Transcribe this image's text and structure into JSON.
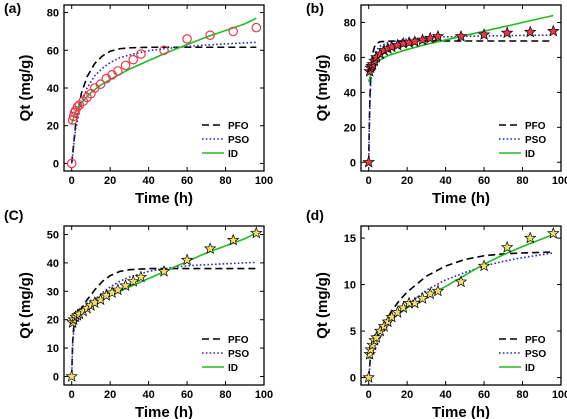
{
  "chart_data": [
    {
      "type": "scatter",
      "panel_label": "(a)",
      "xlabel": "Time (h)",
      "ylabel": "Qt (mg/g)",
      "xlim": [
        -4,
        100
      ],
      "ylim": [
        -4,
        84
      ],
      "xticks": [
        0,
        20,
        40,
        60,
        80,
        100
      ],
      "yticks": [
        0,
        20,
        40,
        60,
        80
      ],
      "grid": false,
      "legend_position": "bottom-right",
      "marker": "circle",
      "marker_fill": "none",
      "marker_stroke": "#e8384a",
      "points": {
        "x": [
          0,
          0.5,
          1,
          1.5,
          2,
          3,
          4,
          6,
          8,
          10,
          12,
          15,
          18,
          21,
          24,
          28,
          32,
          36,
          48,
          60,
          72,
          84,
          96
        ],
        "y": [
          0,
          23,
          25,
          27,
          28,
          30,
          31,
          33,
          35,
          37,
          40,
          42,
          45,
          47,
          49,
          52,
          55,
          58,
          60,
          66,
          68,
          70,
          72
        ]
      },
      "series": [
        {
          "name": "PFO",
          "style": "dash",
          "color": "#000000",
          "x": [
            0,
            2,
            5,
            8,
            12,
            16,
            20,
            25,
            30,
            40,
            50,
            60,
            70,
            80,
            96
          ],
          "y": [
            0,
            20,
            37,
            46,
            53,
            57,
            59.5,
            60.8,
            61.3,
            61.6,
            61.6,
            61.6,
            61.6,
            61.6,
            61.6
          ]
        },
        {
          "name": "PSO",
          "style": "dot",
          "color": "#2b2ab0",
          "x": [
            0,
            2,
            5,
            8,
            12,
            16,
            20,
            25,
            30,
            40,
            50,
            60,
            70,
            80,
            96
          ],
          "y": [
            0,
            18,
            32,
            40,
            46.5,
            50.5,
            53.5,
            56,
            57.5,
            59.8,
            61,
            62,
            62.8,
            63.4,
            64.2
          ]
        },
        {
          "name": "ID",
          "style": "solid",
          "color": "#22bb22",
          "x": [
            0,
            2,
            5,
            10,
            15,
            20,
            30,
            40,
            50,
            60,
            70,
            80,
            90,
            96
          ],
          "y": [
            21,
            27.5,
            32,
            37.5,
            41.5,
            44.5,
            50,
            54.5,
            59,
            63,
            67,
            70.5,
            74,
            77
          ]
        }
      ]
    },
    {
      "type": "scatter",
      "panel_label": "(b)",
      "xlabel": "Time (h)",
      "ylabel": "Qt (mg/g)",
      "xlim": [
        -4,
        100
      ],
      "ylim": [
        -5,
        90
      ],
      "xticks": [
        0,
        20,
        40,
        60,
        80,
        100
      ],
      "yticks": [
        0,
        20,
        40,
        60,
        80
      ],
      "grid": false,
      "legend_position": "bottom-right",
      "marker": "star",
      "marker_fill": "#e8384a",
      "marker_stroke": "#000000",
      "points": {
        "x": [
          0,
          0.5,
          1,
          1.5,
          2,
          3,
          4,
          6,
          8,
          10,
          12,
          15,
          18,
          21,
          24,
          28,
          32,
          36,
          48,
          60,
          72,
          84,
          96
        ],
        "y": [
          0,
          52,
          54,
          55,
          56,
          58,
          60,
          62,
          64,
          65,
          66,
          67,
          68,
          68.5,
          69,
          70,
          71,
          72,
          72,
          73,
          74,
          74.5,
          75
        ]
      },
      "series": [
        {
          "name": "PFO",
          "style": "dash",
          "color": "#000000",
          "x": [
            0,
            0.3,
            0.6,
            1,
            1.5,
            2,
            3,
            4,
            6,
            10,
            20,
            40,
            96
          ],
          "y": [
            0,
            20,
            36,
            48,
            57,
            62,
            66,
            68,
            69,
            69.3,
            69.4,
            69.4,
            69.4
          ]
        },
        {
          "name": "PSO",
          "style": "dot",
          "color": "#2b2ab0",
          "x": [
            0,
            0.3,
            0.6,
            1,
            1.5,
            2,
            3,
            4,
            6,
            10,
            20,
            40,
            60,
            96
          ],
          "y": [
            0,
            18,
            32,
            44,
            52,
            56,
            61,
            64,
            66.5,
            68.5,
            70.5,
            71.8,
            72.3,
            72.8
          ]
        },
        {
          "name": "ID",
          "style": "solid",
          "color": "#22bb22",
          "x": [
            0,
            2,
            5,
            10,
            20,
            30,
            40,
            50,
            60,
            70,
            80,
            90,
            96
          ],
          "y": [
            46,
            54,
            58,
            61,
            64.5,
            67.5,
            70,
            72.5,
            75,
            77.5,
            80,
            82.5,
            84
          ]
        }
      ]
    },
    {
      "type": "scatter",
      "panel_label": "(C)",
      "xlabel": "Time (h)",
      "ylabel": "Qt (mg/g)",
      "xlim": [
        -4,
        100
      ],
      "ylim": [
        -3,
        53
      ],
      "xticks": [
        0,
        20,
        40,
        60,
        80,
        100
      ],
      "yticks": [
        0,
        10,
        20,
        30,
        40,
        50
      ],
      "grid": false,
      "legend_position": "bottom-right",
      "marker": "star",
      "marker_fill": "#f2df6a",
      "marker_stroke": "#000000",
      "points": {
        "x": [
          0,
          0.5,
          1,
          2,
          3,
          4,
          6,
          8,
          10,
          12,
          15,
          18,
          21,
          24,
          28,
          32,
          36,
          48,
          60,
          72,
          84,
          96
        ],
        "y": [
          0,
          19,
          20,
          21,
          21.5,
          22,
          23,
          24,
          25,
          26,
          27,
          28.5,
          29.5,
          30.5,
          32,
          33.5,
          35,
          37,
          41,
          45,
          48,
          50.5
        ]
      },
      "series": [
        {
          "name": "PFO",
          "style": "dash",
          "color": "#000000",
          "x": [
            0,
            0.5,
            1,
            2,
            4,
            8,
            12,
            16,
            20,
            25,
            30,
            40,
            60,
            96
          ],
          "y": [
            0,
            12,
            17,
            20,
            23,
            27,
            30.5,
            33.5,
            35.5,
            37,
            37.6,
            38,
            38,
            38
          ]
        },
        {
          "name": "PSO",
          "style": "dot",
          "color": "#2b2ab0",
          "x": [
            0,
            0.5,
            1,
            2,
            4,
            8,
            12,
            16,
            20,
            25,
            30,
            40,
            50,
            60,
            80,
            96
          ],
          "y": [
            0,
            11,
            15.5,
            19,
            21.5,
            24.5,
            27,
            29.5,
            31.5,
            33.5,
            35,
            37,
            38.2,
            39,
            39.7,
            40.2
          ]
        },
        {
          "name": "ID",
          "style": "solid",
          "color": "#22bb22",
          "x": [
            0,
            2,
            5,
            10,
            15,
            20,
            30,
            40,
            50,
            60,
            70,
            80,
            90,
            96
          ],
          "y": [
            19.5,
            21.5,
            23,
            25,
            27,
            28.5,
            31.5,
            34.5,
            37.5,
            40.5,
            43.5,
            46,
            48.5,
            50.5
          ]
        }
      ]
    },
    {
      "type": "scatter",
      "panel_label": "(d)",
      "xlabel": "Time (h)",
      "ylabel": "Qt (mg/g)",
      "xlim": [
        -4,
        100
      ],
      "ylim": [
        -0.8,
        16.3
      ],
      "xticks": [
        0,
        20,
        40,
        60,
        80,
        100
      ],
      "yticks": [
        0,
        5,
        10,
        15
      ],
      "grid": false,
      "legend_position": "bottom-right",
      "marker": "star",
      "marker_fill": "#f2df6a",
      "marker_stroke": "#000000",
      "points": {
        "x": [
          0,
          0.5,
          1,
          2,
          3,
          4,
          6,
          8,
          10,
          12,
          15,
          18,
          21,
          24,
          28,
          32,
          36,
          48,
          60,
          72,
          84,
          96
        ],
        "y": [
          0,
          2.5,
          3,
          3.5,
          4,
          4.3,
          5,
          5.5,
          6,
          6.5,
          7,
          7.5,
          8,
          8,
          8.5,
          9,
          9.3,
          10.3,
          12,
          14,
          15,
          15.5
        ]
      },
      "series": [
        {
          "name": "PFO",
          "style": "dash",
          "color": "#000000",
          "x": [
            0,
            1,
            2,
            4,
            8,
            12,
            16,
            20,
            30,
            40,
            50,
            60,
            70,
            80,
            96
          ],
          "y": [
            0,
            2.5,
            3.3,
            4.2,
            5.8,
            7.2,
            8.3,
            9.2,
            10.9,
            12,
            12.7,
            13.1,
            13.3,
            13.4,
            13.5
          ]
        },
        {
          "name": "PSO",
          "style": "dot",
          "color": "#2b2ab0",
          "x": [
            0,
            1,
            2,
            4,
            8,
            12,
            16,
            20,
            30,
            40,
            50,
            60,
            70,
            80,
            96
          ],
          "y": [
            0,
            2,
            2.8,
            3.7,
            5,
            6.1,
            7,
            7.8,
            9.4,
            10.5,
            11.3,
            12,
            12.5,
            12.9,
            13.4
          ]
        },
        {
          "name": "ID",
          "style": "solid",
          "color": "#22bb22",
          "x": [
            0,
            2,
            5,
            10,
            20,
            30,
            40,
            50,
            60,
            70,
            80,
            90,
            96
          ],
          "y": [
            2,
            3.5,
            4.8,
            6,
            7.5,
            8.7,
            9.8,
            11,
            12.2,
            13.2,
            14.1,
            14.9,
            15.4
          ]
        }
      ]
    }
  ]
}
